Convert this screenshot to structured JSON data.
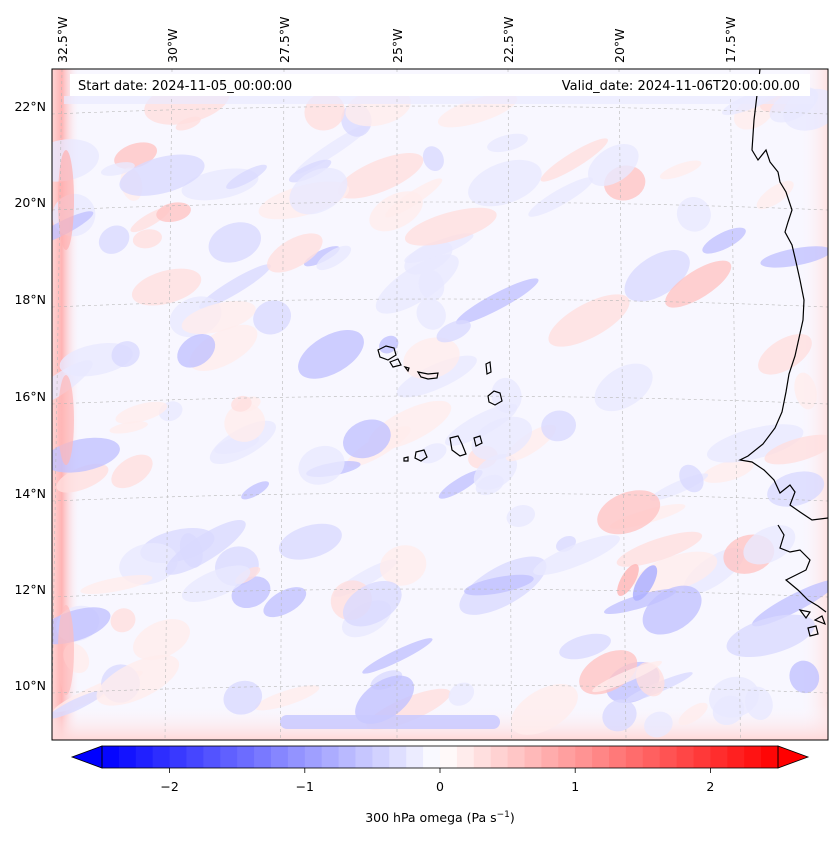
{
  "header": {
    "start_date": "Start date: 2024-11-05_00:00:00",
    "valid_date": "Valid_date: 2024-11-06T20:00:00.00"
  },
  "map": {
    "lon_labels": [
      "32.5°W",
      "30°W",
      "27.5°W",
      "25°W",
      "22.5°W",
      "20°W",
      "17.5°W"
    ],
    "lat_labels": [
      "22°N",
      "20°N",
      "18°N",
      "16°N",
      "14°N",
      "12°N",
      "10°N"
    ],
    "variable": "300 hPa omega",
    "field_description_colors": {
      "negative": "#0000ff",
      "zero": "#ffffff",
      "positive": "#ff0000",
      "coastline": "#000000",
      "gridline": "#b0b0b0"
    }
  },
  "colorbar": {
    "label": "300 hPa omega (Pa s",
    "label_superscript": "−1",
    "label_close": ")",
    "tick_labels": [
      "−2",
      "−1",
      "0",
      "1",
      "2"
    ],
    "ticks": [
      -2,
      -1,
      0,
      1,
      2
    ],
    "range": [
      -2.5,
      2.5
    ],
    "extend": "both",
    "cmap": "bwr"
  }
}
